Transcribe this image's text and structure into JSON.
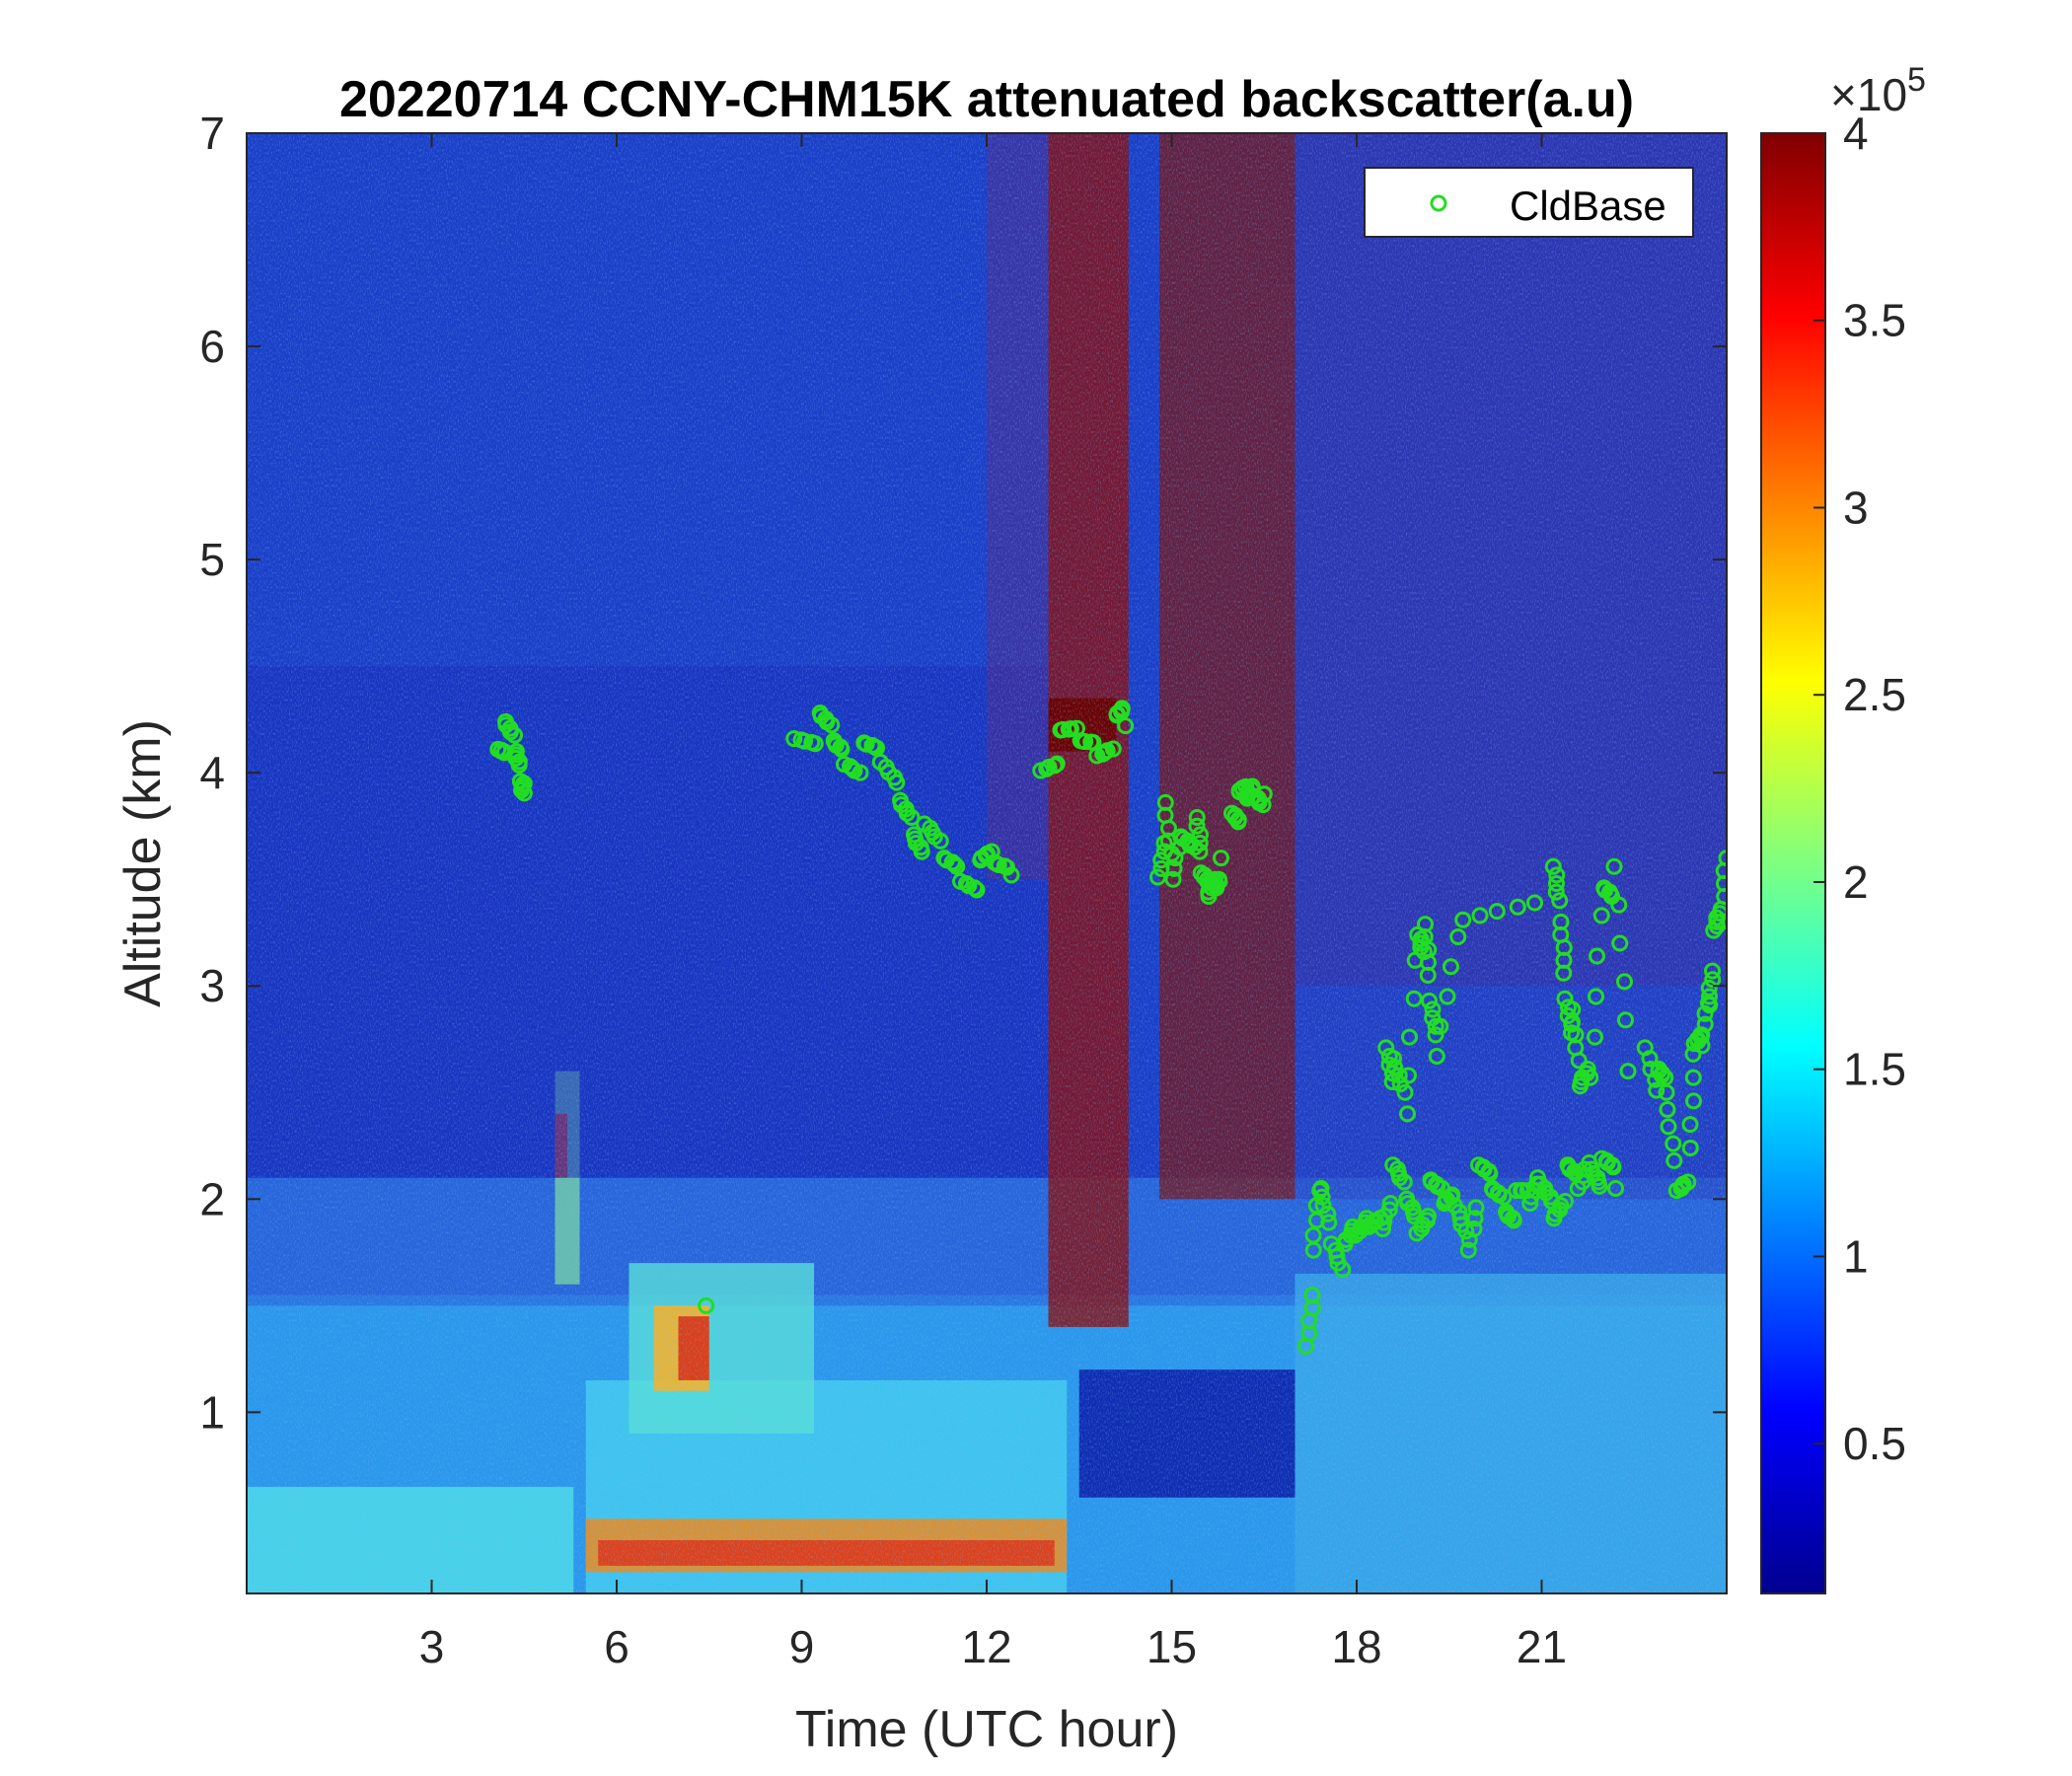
{
  "chart_data": {
    "type": "heatmap",
    "title": "20220714 CCNY-CHM15K attenuated backscatter(a.u)",
    "xlabel": "Time (UTC hour)",
    "ylabel": "Altitude (km)",
    "xlim": [
      0,
      24
    ],
    "ylim": [
      0.15,
      7
    ],
    "xticks": [
      3,
      6,
      9,
      12,
      15,
      18,
      21
    ],
    "xtick_labels": [
      "3",
      "6",
      "9",
      "12",
      "15",
      "18",
      "21"
    ],
    "yticks": [
      1,
      2,
      3,
      4,
      5,
      6,
      7
    ],
    "ytick_labels": [
      "1",
      "2",
      "3",
      "4",
      "5",
      "6",
      "7"
    ],
    "colormap": "jet",
    "clim": [
      10000,
      400000
    ],
    "colorbar_ticks": [
      50000,
      100000,
      150000,
      200000,
      250000,
      300000,
      350000,
      400000
    ],
    "colorbar_tick_labels": [
      "0.5",
      "1",
      "1.5",
      "2",
      "2.5",
      "3",
      "3.5",
      "4"
    ],
    "colorbar_multiplier": "×10",
    "colorbar_exponent": "5",
    "legend": {
      "label": "CldBase",
      "position": "top-right",
      "marker_color": "#22dd22"
    },
    "cloud_base_segments": [
      {
        "points": [
          [
            4.1,
            4.2
          ],
          [
            4.2,
            4.18
          ],
          [
            4.35,
            4.1
          ],
          [
            4.45,
            4.02
          ],
          [
            4.5,
            3.95
          ]
        ]
      },
      {
        "points": [
          [
            7.45,
            1.5
          ]
        ]
      },
      {
        "points": [
          [
            8.9,
            4.25
          ],
          [
            9.3,
            4.22
          ],
          [
            9.5,
            4.15
          ],
          [
            9.7,
            4.1
          ],
          [
            10.0,
            4.05
          ],
          [
            10.3,
            4.02
          ],
          [
            10.6,
            3.9
          ],
          [
            10.8,
            3.8
          ],
          [
            11.0,
            3.7
          ],
          [
            11.3,
            3.6
          ],
          [
            11.6,
            3.55
          ],
          [
            11.9,
            3.5
          ],
          [
            12.1,
            3.55
          ],
          [
            12.4,
            3.52
          ]
        ]
      },
      {
        "points": [
          [
            12.9,
            4.1
          ],
          [
            13.2,
            4.14
          ],
          [
            13.5,
            4.15
          ],
          [
            13.8,
            4.14
          ],
          [
            14.1,
            4.18
          ],
          [
            14.25,
            4.22
          ]
        ]
      },
      {
        "points": [
          [
            14.8,
            3.6
          ],
          [
            14.9,
            3.8
          ],
          [
            15.0,
            3.5
          ],
          [
            15.2,
            3.75
          ],
          [
            15.4,
            3.7
          ],
          [
            15.5,
            3.5
          ],
          [
            15.6,
            3.45
          ],
          [
            15.7,
            3.55
          ],
          [
            15.8,
            3.6
          ]
        ]
      },
      {
        "points": [
          [
            16.0,
            3.9
          ],
          [
            16.1,
            3.85
          ],
          [
            16.2,
            3.88
          ],
          [
            16.35,
            3.95
          ],
          [
            16.5,
            3.9
          ]
        ]
      },
      {
        "points": [
          [
            17.2,
            1.4
          ],
          [
            17.3,
            1.7
          ],
          [
            17.4,
            2.05
          ],
          [
            17.6,
            1.85
          ],
          [
            17.8,
            1.7
          ],
          [
            18.0,
            1.8
          ],
          [
            18.2,
            1.9
          ],
          [
            18.4,
            1.95
          ],
          [
            18.6,
            2.1
          ],
          [
            18.8,
            2.0
          ],
          [
            19.0,
            1.9
          ],
          [
            19.2,
            2.0
          ],
          [
            19.4,
            1.95
          ],
          [
            19.6,
            2.0
          ],
          [
            19.8,
            1.85
          ],
          [
            20.0,
            2.1
          ],
          [
            20.2,
            2.05
          ],
          [
            20.4,
            2.0
          ],
          [
            20.6,
            1.95
          ],
          [
            20.8,
            1.95
          ],
          [
            21.0,
            2.1
          ],
          [
            21.2,
            2.0
          ],
          [
            21.4,
            2.1
          ],
          [
            21.6,
            2.05
          ],
          [
            21.8,
            2.2
          ],
          [
            22.0,
            2.1
          ],
          [
            22.2,
            2.05
          ]
        ]
      },
      {
        "points": [
          [
            18.5,
            2.8
          ],
          [
            18.6,
            2.6
          ],
          [
            18.8,
            2.4
          ],
          [
            19.0,
            3.3
          ],
          [
            19.1,
            3.2
          ],
          [
            19.2,
            2.9
          ],
          [
            19.3,
            2.7
          ],
          [
            19.7,
            3.4
          ],
          [
            21.2,
            3.5
          ],
          [
            21.3,
            3.3
          ],
          [
            21.4,
            3.0
          ],
          [
            21.5,
            2.8
          ],
          [
            21.6,
            2.5
          ],
          [
            21.8,
            2.6
          ],
          [
            22.0,
            3.55
          ],
          [
            22.2,
            3.5
          ],
          [
            22.4,
            2.6
          ]
        ]
      },
      {
        "points": [
          [
            22.7,
            2.8
          ],
          [
            22.9,
            2.55
          ],
          [
            23.0,
            2.5
          ],
          [
            23.2,
            2.1
          ],
          [
            23.4,
            2.15
          ],
          [
            23.5,
            2.7
          ],
          [
            23.6,
            2.75
          ],
          [
            23.7,
            3.0
          ],
          [
            23.8,
            3.2
          ],
          [
            23.9,
            3.3
          ],
          [
            24.0,
            3.6
          ]
        ]
      }
    ]
  }
}
